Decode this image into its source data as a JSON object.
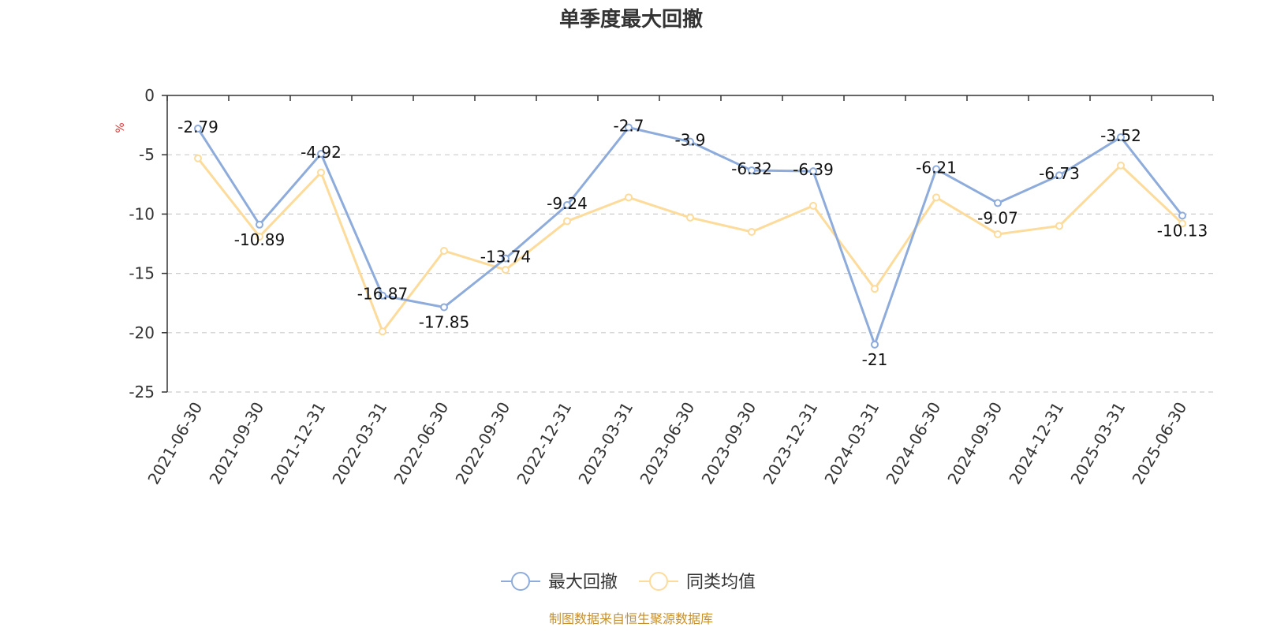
{
  "chart_data": {
    "type": "line",
    "title": "单季度最大回撤",
    "ylabel": "%",
    "ylim": [
      -25,
      0
    ],
    "yticks": [
      0,
      -5,
      -10,
      -15,
      -20,
      -25
    ],
    "grid": true,
    "legend_position": "bottom-center",
    "categories": [
      "2021-06-30",
      "2021-09-30",
      "2021-12-31",
      "2022-03-31",
      "2022-06-30",
      "2022-09-30",
      "2022-12-31",
      "2023-03-31",
      "2023-06-30",
      "2023-09-30",
      "2023-12-31",
      "2024-03-31",
      "2024-06-30",
      "2024-09-30",
      "2024-12-31",
      "2025-03-31",
      "2025-06-30"
    ],
    "series": [
      {
        "name": "最大回撤",
        "color": "#8eacdb",
        "show_labels": true,
        "values": [
          -2.79,
          -10.89,
          -4.92,
          -16.87,
          -17.85,
          -13.74,
          -9.24,
          -2.7,
          -3.9,
          -6.32,
          -6.39,
          -21,
          -6.21,
          -9.07,
          -6.73,
          -3.52,
          -10.13
        ]
      },
      {
        "name": "同类均值",
        "color": "#fcdb9b",
        "show_labels": false,
        "values": [
          -5.3,
          -11.9,
          -6.5,
          -19.9,
          -13.1,
          -14.7,
          -10.6,
          -8.6,
          -10.3,
          -11.5,
          -9.3,
          -16.3,
          -8.6,
          -11.7,
          -11.0,
          -5.9,
          -10.8
        ]
      }
    ],
    "source_note": "制图数据来自恒生聚源数据库",
    "colors": {
      "axis": "#333333",
      "grid": "#cccccc",
      "unit_label": "#e03030",
      "source_note": "#c8902a"
    }
  }
}
